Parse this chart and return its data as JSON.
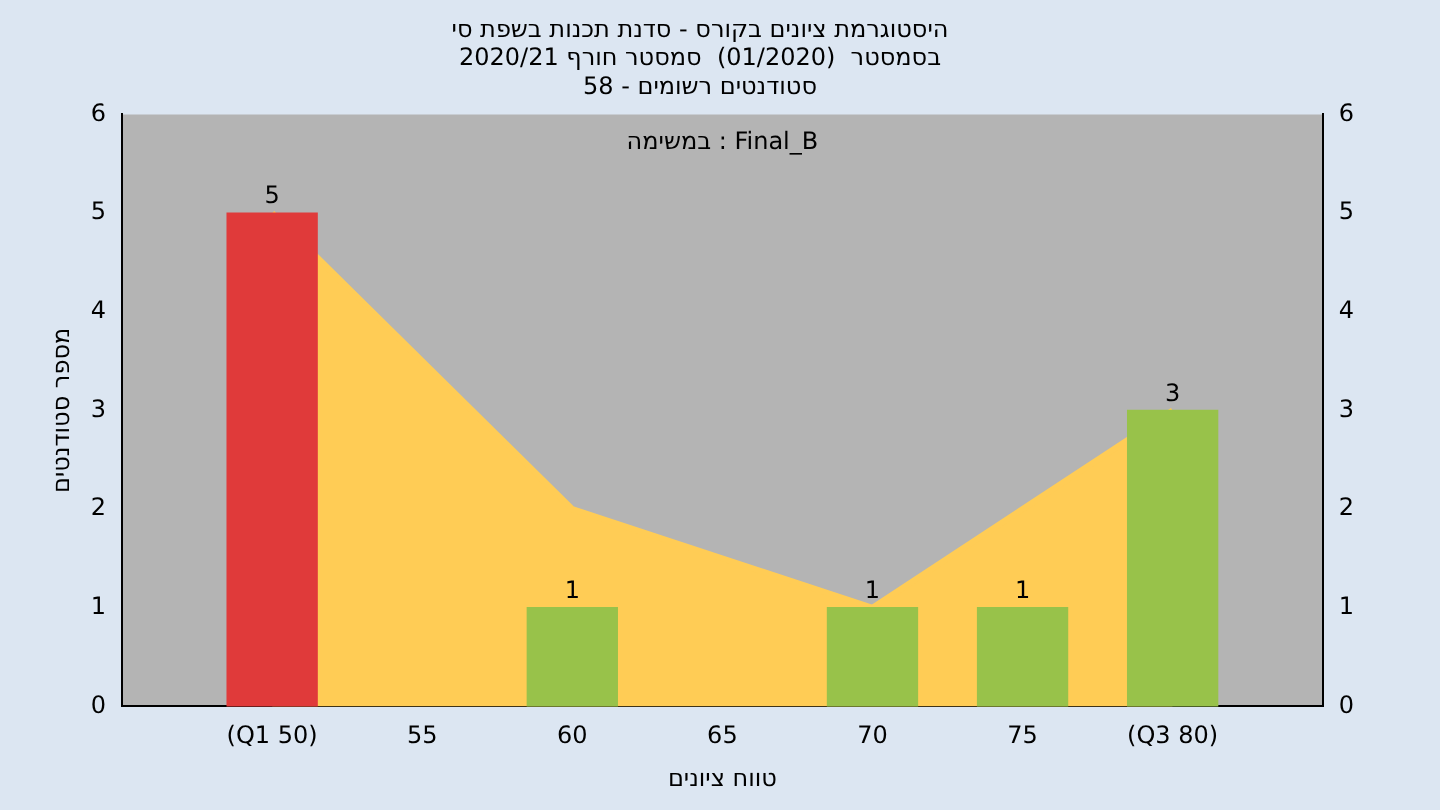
{
  "chart_data": {
    "type": "bar",
    "title": "היסטוגרמת ציונים בקורס - סדנת תכנות בשפת סי\nבסמסטר  (01/2020)  סמסטר חורף 2020/21\nסטודנטים רשומים - 58",
    "xlabel": "טווח ציונים",
    "ylabel": "מספר סטודנטים",
    "annotations": [
      "במשימה : Final_B"
    ],
    "series": [
      {
        "type": "area",
        "color": "#ffcc55",
        "x": [
          50,
          60,
          70,
          80
        ],
        "values": [
          5,
          2,
          1,
          3
        ]
      },
      {
        "x": [
          50,
          60,
          70,
          75,
          80
        ],
        "values": [
          5,
          1,
          1,
          1,
          3
        ],
        "colors": [
          "#e03a3a",
          "#98c24a",
          "#98c24a",
          "#98c24a",
          "#98c24a"
        ],
        "value_labels": [
          "5",
          "1",
          "1",
          "1",
          "3"
        ]
      }
    ],
    "xlim": [
      45,
      85
    ],
    "xticks": [
      {
        "value": 50,
        "label": "(Q1 50)"
      },
      55,
      60,
      65,
      70,
      75,
      {
        "value": 80,
        "label": "(Q3 80)"
      }
    ],
    "ylim": [
      0,
      6
    ],
    "yticks": [
      0,
      1,
      2,
      3,
      4,
      5,
      6
    ],
    "y2lim": [
      0,
      6
    ],
    "y2ticks": [
      0,
      1,
      2,
      3,
      4,
      5,
      6
    ],
    "grid": false,
    "legend": false
  }
}
